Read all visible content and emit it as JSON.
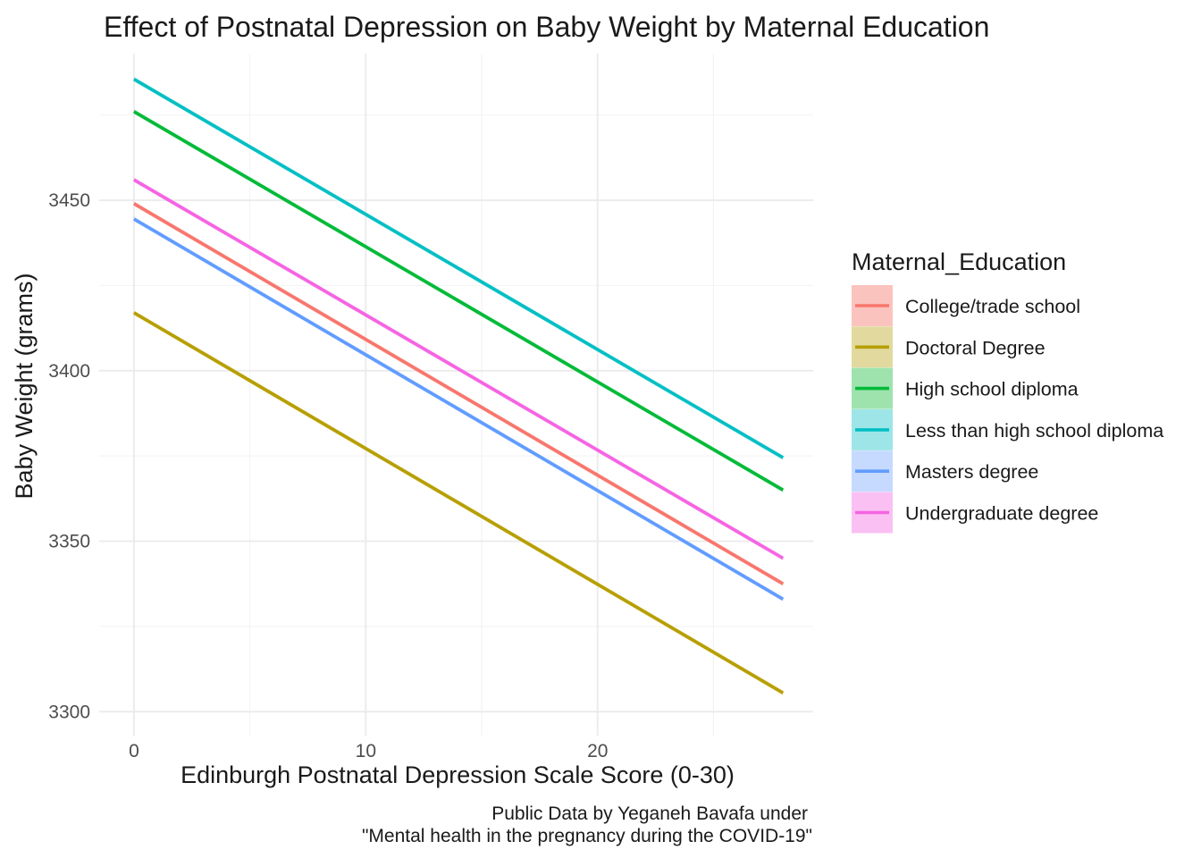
{
  "chart_data": {
    "type": "line",
    "title": "Effect of Postnatal Depression on Baby Weight by Maternal Education",
    "xlabel": "Edinburgh Postnatal Depression Scale Score (0-30)",
    "ylabel": "Baby Weight (grams)",
    "xlim": [
      -1.5,
      29.3
    ],
    "ylim": [
      3293,
      3493
    ],
    "x_ticks": [
      0,
      10,
      20
    ],
    "y_ticks": [
      3300,
      3350,
      3400,
      3450
    ],
    "grid": true,
    "legend": {
      "title": "Maternal_Education",
      "position": "right"
    },
    "caption": [
      "Public Data by Yeganeh Bavafa under",
      "\"Mental health in the pregnancy during the COVID-19\""
    ],
    "x": [
      0,
      28
    ],
    "series": [
      {
        "name": "College/trade school",
        "color": "#F8766D",
        "fill": "#FBC3BE",
        "values": [
          3449,
          3337.5
        ]
      },
      {
        "name": "Doctoral Degree",
        "color": "#B79F00",
        "fill": "#E2D99E",
        "values": [
          3417,
          3305.5
        ]
      },
      {
        "name": "High school diploma",
        "color": "#00BA38",
        "fill": "#9EE3AE",
        "values": [
          3476,
          3365
        ]
      },
      {
        "name": "Less than high school diploma",
        "color": "#00BFC4",
        "fill": "#9EE5E7",
        "values": [
          3485.5,
          3374.5
        ]
      },
      {
        "name": "Masters degree",
        "color": "#619CFF",
        "fill": "#C6DAFF",
        "values": [
          3444.5,
          3333
        ]
      },
      {
        "name": "Undergraduate degree",
        "color": "#F564E3",
        "fill": "#FBC0F3",
        "values": [
          3456,
          3345
        ]
      }
    ]
  }
}
